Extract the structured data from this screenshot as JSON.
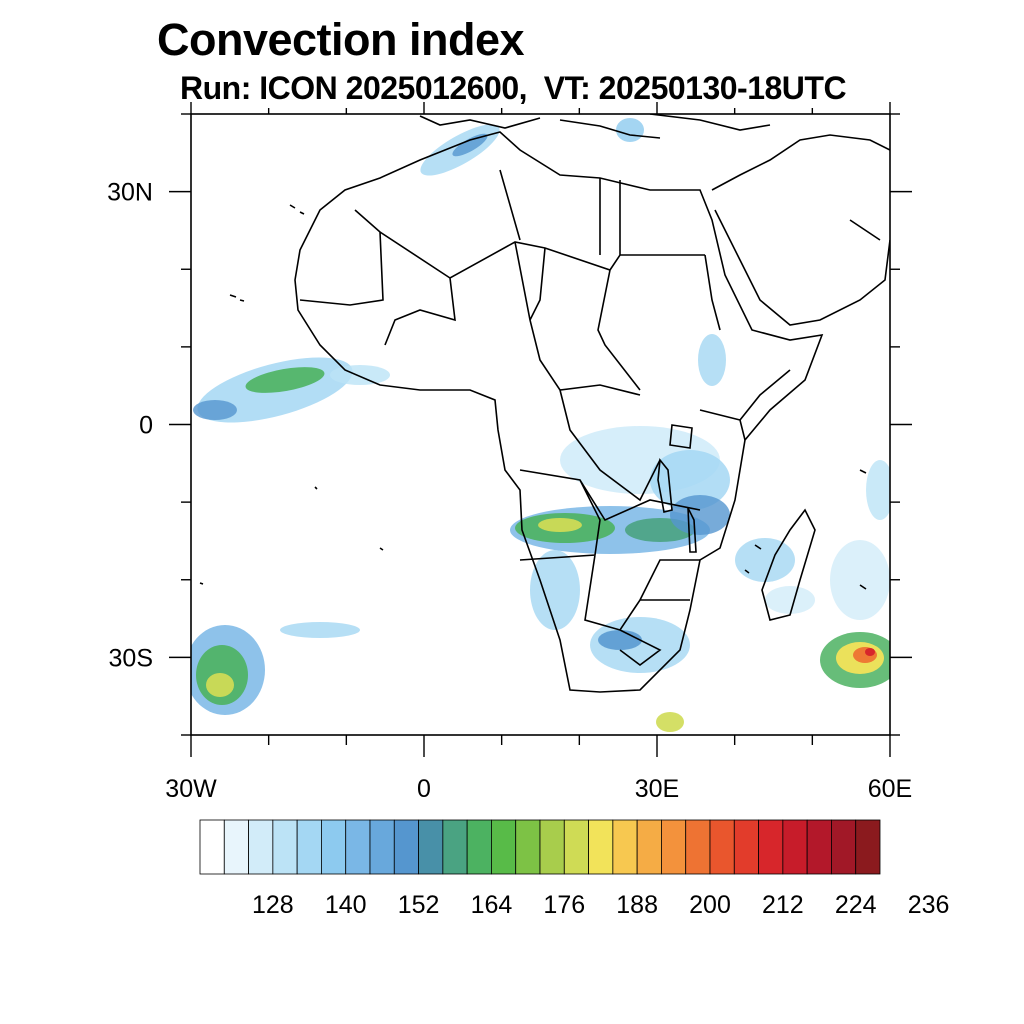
{
  "title": "Convection index",
  "subtitle": "Run: ICON 2025012600,  VT: 20250130-18UTC",
  "map": {
    "lon_range": [
      -30,
      60
    ],
    "lat_range": [
      -40,
      40
    ],
    "lat_labels": [
      {
        "lat": 30,
        "text": "30N"
      },
      {
        "lat": 0,
        "text": "0"
      },
      {
        "lat": -30,
        "text": "30S"
      }
    ],
    "lon_labels": [
      {
        "lon": -30,
        "text": "30W"
      },
      {
        "lon": 0,
        "text": "0"
      },
      {
        "lon": 30,
        "text": "30E"
      },
      {
        "lon": 60,
        "text": "60E"
      }
    ]
  },
  "colorbar": {
    "colors": [
      "#ffffff",
      "#e8f5fc",
      "#d2ecf9",
      "#bce3f6",
      "#a4d7f3",
      "#8dcaef",
      "#7ab7e6",
      "#68a8dc",
      "#5596cf",
      "#4890a8",
      "#4aa382",
      "#4cb261",
      "#58bb48",
      "#7dc245",
      "#a8cd4c",
      "#cfdb55",
      "#f2e35a",
      "#f7c850",
      "#f5ac45",
      "#f3923c",
      "#ee7333",
      "#e9562d",
      "#e23c2b",
      "#d7262b",
      "#c71c2a",
      "#b3182a",
      "#a11827",
      "#8b1a1e"
    ],
    "labels": [
      "128",
      "140",
      "152",
      "164",
      "176",
      "188",
      "200",
      "212",
      "224",
      "236"
    ]
  }
}
